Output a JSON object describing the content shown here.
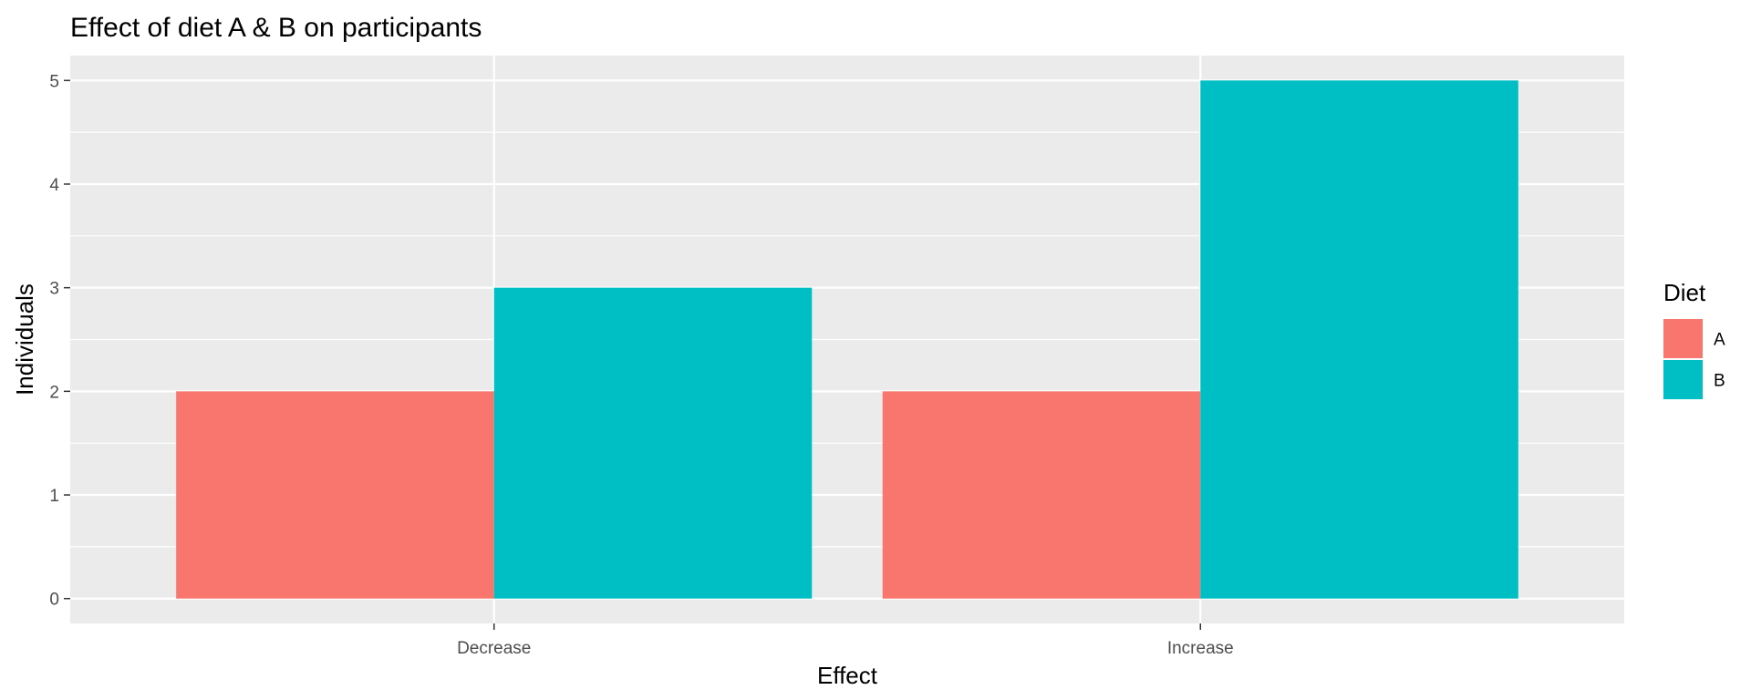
{
  "chart_data": {
    "type": "bar",
    "title": "Effect of diet A & B on participants",
    "xlabel": "Effect",
    "ylabel": "Individuals",
    "categories": [
      "Decrease",
      "Increase"
    ],
    "series": [
      {
        "name": "A",
        "values": [
          2,
          2
        ],
        "color": "#F8766D"
      },
      {
        "name": "B",
        "values": [
          3,
          5
        ],
        "color": "#00BFC4"
      }
    ],
    "ylim": [
      -0.24,
      5.24
    ],
    "yticks": [
      0,
      1,
      2,
      3,
      4,
      5
    ],
    "grid": true,
    "legend": {
      "title": "Diet",
      "position": "right"
    },
    "panel_background": "#EBEBEB",
    "grid_color": "#FFFFFF"
  }
}
